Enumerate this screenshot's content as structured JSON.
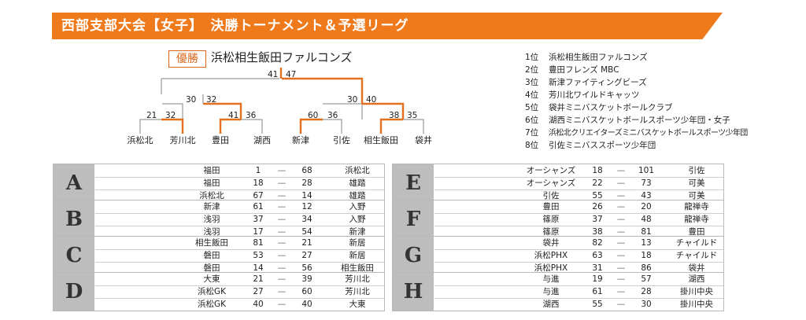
{
  "header": {
    "title": "西部支部大会【女子】　決勝トーナメント＆予選リーグ"
  },
  "tournament": {
    "champion_label": "優勝",
    "champion_name": "浜松相生飯田ファルコンズ",
    "final": {
      "left": "41",
      "right": "47"
    },
    "semis": [
      {
        "left": "30",
        "right": "32"
      },
      {
        "left": "30",
        "right": "40"
      }
    ],
    "quarters": [
      {
        "left": "21",
        "right": "32"
      },
      {
        "left": "41",
        "right": "36"
      },
      {
        "left": "60",
        "right": "36"
      },
      {
        "left": "38",
        "right": "35"
      }
    ],
    "teams": [
      "浜松北",
      "芳川北",
      "豊田",
      "湖西",
      "新津",
      "引佐",
      "相生飯田",
      "袋井"
    ],
    "winner_color": "#e2701f",
    "line_color": "#9a9a9a"
  },
  "rankings": [
    {
      "pos": "1位",
      "name": "浜松相生飯田ファルコンズ"
    },
    {
      "pos": "2位",
      "name": "豊田フレンズ MBC"
    },
    {
      "pos": "3位",
      "name": "新津ファイティングビーズ"
    },
    {
      "pos": "4位",
      "name": "芳川北ワイルドキャッツ"
    },
    {
      "pos": "5位",
      "name": "袋井ミニバスケットボールクラブ"
    },
    {
      "pos": "6位",
      "name": "湖西ミニバスケットボールスポーツ少年団・女子"
    },
    {
      "pos": "7位",
      "name": "浜松北クリエイターズミニバスケットボールスポーツ少年団"
    },
    {
      "pos": "8位",
      "name": "引佐ミニバススポーツ少年団"
    }
  ],
  "groups": [
    {
      "letter": "A",
      "matches": [
        {
          "t1": "福田",
          "s1": "1",
          "dash": "—",
          "s2": "68",
          "t2": "浜松北"
        },
        {
          "t1": "福田",
          "s1": "18",
          "dash": "—",
          "s2": "28",
          "t2": "雄踏"
        },
        {
          "t1": "浜松北",
          "s1": "67",
          "dash": "—",
          "s2": "14",
          "t2": "雄踏"
        }
      ]
    },
    {
      "letter": "B",
      "matches": [
        {
          "t1": "新津",
          "s1": "61",
          "dash": "—",
          "s2": "12",
          "t2": "入野"
        },
        {
          "t1": "浅羽",
          "s1": "37",
          "dash": "—",
          "s2": "34",
          "t2": "入野"
        },
        {
          "t1": "浅羽",
          "s1": "17",
          "dash": "—",
          "s2": "54",
          "t2": "新津"
        }
      ]
    },
    {
      "letter": "C",
      "matches": [
        {
          "t1": "相生飯田",
          "s1": "81",
          "dash": "—",
          "s2": "21",
          "t2": "新居"
        },
        {
          "t1": "磐田",
          "s1": "53",
          "dash": "—",
          "s2": "27",
          "t2": "新居"
        },
        {
          "t1": "磐田",
          "s1": "14",
          "dash": "—",
          "s2": "56",
          "t2": "相生飯田"
        }
      ]
    },
    {
      "letter": "D",
      "matches": [
        {
          "t1": "大東",
          "s1": "21",
          "dash": "—",
          "s2": "39",
          "t2": "芳川北"
        },
        {
          "t1": "浜松GK",
          "s1": "27",
          "dash": "—",
          "s2": "60",
          "t2": "芳川北"
        },
        {
          "t1": "浜松GK",
          "s1": "40",
          "dash": "—",
          "s2": "40",
          "t2": "大東"
        }
      ]
    },
    {
      "letter": "E",
      "matches": [
        {
          "t1": "オーシャンズ",
          "s1": "18",
          "dash": "—",
          "s2": "101",
          "t2": "引佐"
        },
        {
          "t1": "オーシャンズ",
          "s1": "22",
          "dash": "—",
          "s2": "73",
          "t2": "可美"
        },
        {
          "t1": "引佐",
          "s1": "55",
          "dash": "—",
          "s2": "43",
          "t2": "可美"
        }
      ]
    },
    {
      "letter": "F",
      "matches": [
        {
          "t1": "豊田",
          "s1": "26",
          "dash": "—",
          "s2": "20",
          "t2": "龍禅寺"
        },
        {
          "t1": "篠原",
          "s1": "37",
          "dash": "—",
          "s2": "48",
          "t2": "龍禅寺"
        },
        {
          "t1": "篠原",
          "s1": "38",
          "dash": "—",
          "s2": "81",
          "t2": "豊田"
        }
      ]
    },
    {
      "letter": "G",
      "matches": [
        {
          "t1": "袋井",
          "s1": "82",
          "dash": "—",
          "s2": "13",
          "t2": "チャイルド"
        },
        {
          "t1": "浜松PHX",
          "s1": "63",
          "dash": "—",
          "s2": "18",
          "t2": "チャイルド"
        },
        {
          "t1": "浜松PHX",
          "s1": "31",
          "dash": "—",
          "s2": "86",
          "t2": "袋井"
        }
      ]
    },
    {
      "letter": "H",
      "matches": [
        {
          "t1": "与進",
          "s1": "19",
          "dash": "—",
          "s2": "57",
          "t2": "湖西"
        },
        {
          "t1": "与進",
          "s1": "61",
          "dash": "—",
          "s2": "28",
          "t2": "掛川中央"
        },
        {
          "t1": "湖西",
          "s1": "55",
          "dash": "—",
          "s2": "30",
          "t2": "掛川中央"
        }
      ]
    }
  ]
}
